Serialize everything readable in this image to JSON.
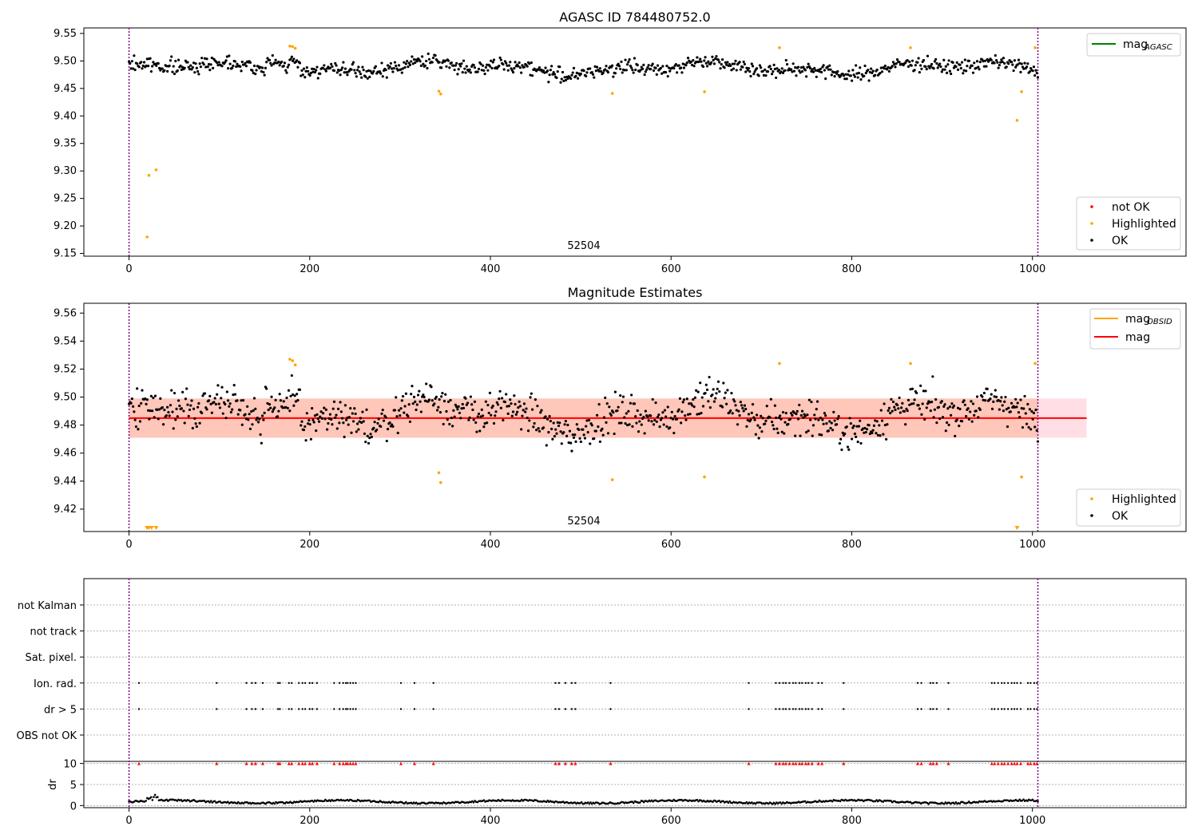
{
  "chart_data": [
    {
      "type": "scatter",
      "title": "AGASC ID 784480752.0",
      "annotation": "52504",
      "xlim": [
        -50,
        1170
      ],
      "ylim": [
        9.145,
        9.56
      ],
      "xticks": [
        0,
        200,
        400,
        600,
        800,
        1000
      ],
      "yticks": [
        9.15,
        9.2,
        9.25,
        9.3,
        9.35,
        9.4,
        9.45,
        9.5,
        9.55
      ],
      "ytick_labels": [
        "9.15",
        "9.20",
        "9.25",
        "9.30",
        "9.35",
        "9.40",
        "9.45",
        "9.50",
        "9.55"
      ],
      "vlines": [
        0,
        1006
      ],
      "lines": [
        {
          "name": "mag_AGASC",
          "label_main": "mag",
          "label_sub": "AGASC",
          "color": "#008000",
          "y": null
        }
      ],
      "legend_points": [
        {
          "name": "not OK",
          "color": "#ff0000"
        },
        {
          "name": "Highlighted",
          "color": "#ffa500"
        },
        {
          "name": "OK",
          "color": "#000000"
        }
      ],
      "ok_points": {
        "x_start": 0,
        "x_end": 1006,
        "count": 900,
        "base": 9.487,
        "spread": 0.014,
        "color": "#000000"
      },
      "highlighted_points": {
        "x": [
          20,
          22,
          30,
          178,
          181,
          184,
          343,
          345,
          535,
          637,
          720,
          865,
          983,
          988,
          1003
        ],
        "y": [
          9.18,
          9.292,
          9.302,
          9.527,
          9.526,
          9.523,
          9.445,
          9.44,
          9.441,
          9.444,
          9.524,
          9.524,
          9.392,
          9.444,
          9.524
        ],
        "color": "#ffa500"
      }
    },
    {
      "type": "scatter",
      "title": "Magnitude Estimates",
      "annotation": "52504",
      "xlim": [
        -50,
        1170
      ],
      "ylim": [
        9.404,
        9.567
      ],
      "xticks": [
        0,
        200,
        400,
        600,
        800,
        1000
      ],
      "yticks": [
        9.42,
        9.44,
        9.46,
        9.48,
        9.5,
        9.52,
        9.54,
        9.56
      ],
      "ytick_labels": [
        "9.42",
        "9.44",
        "9.46",
        "9.48",
        "9.50",
        "9.52",
        "9.54",
        "9.56"
      ],
      "vlines": [
        0,
        1006
      ],
      "mag": {
        "value": 9.485,
        "x_end": 1060,
        "color": "#ff0000"
      },
      "bands": [
        {
          "y0": 9.471,
          "y1": 9.499,
          "x_end": 1060,
          "color": "#ffc0cb",
          "opacity": 0.5
        },
        {
          "y0": 9.471,
          "y1": 9.499,
          "x_end": 1006,
          "color": "#ffa07a",
          "opacity": 0.4
        }
      ],
      "lines": [
        {
          "name": "mag_OBSID",
          "label_main": "mag",
          "label_sub": "OBSID",
          "color": "#ffa500"
        },
        {
          "name": "mag",
          "label_main": "mag",
          "label_sub": "",
          "color": "#ff0000"
        }
      ],
      "legend_points": [
        {
          "name": "Highlighted",
          "color": "#ffa500"
        },
        {
          "name": "OK",
          "color": "#000000"
        }
      ],
      "ok_points": {
        "x_start": 0,
        "x_end": 1006,
        "count": 900,
        "base": 9.487,
        "spread": 0.014,
        "color": "#000000"
      },
      "highlighted_points": {
        "x": [
          178,
          181,
          184,
          343,
          345,
          535,
          637,
          720,
          865,
          988,
          1003
        ],
        "y": [
          9.527,
          9.526,
          9.523,
          9.446,
          9.439,
          9.441,
          9.443,
          9.524,
          9.524,
          9.443,
          9.524
        ],
        "color": "#ffa500"
      },
      "offscale_markers": {
        "x": [
          20,
          22,
          25,
          30,
          983
        ],
        "color": "#ffa500"
      }
    },
    {
      "type": "scatter",
      "title": "",
      "xlim": [
        -50,
        1170
      ],
      "xticks": [
        0,
        200,
        400,
        600,
        800,
        1000
      ],
      "vlines": [
        0,
        1006
      ],
      "flag_rows": [
        "not Kalman",
        "not track",
        "Sat. pixel.",
        "Ion. rad.",
        "dr > 5",
        "OBS not OK"
      ],
      "flag_events": {
        "Ion. rad.": [
          11,
          97,
          130,
          136,
          140,
          148,
          165,
          167,
          177,
          180,
          188,
          192,
          195,
          200,
          203,
          208,
          227,
          233,
          237,
          240,
          242,
          245,
          248,
          251,
          301,
          316,
          337,
          472,
          476,
          483,
          490,
          494,
          533,
          686,
          716,
          720,
          724,
          727,
          731,
          735,
          738,
          742,
          745,
          749,
          752,
          756,
          763,
          767,
          791,
          873,
          877,
          887,
          890,
          894,
          907,
          955,
          958,
          962,
          966,
          969,
          973,
          977,
          980,
          983,
          987,
          995,
          998,
          1002,
          1005
        ],
        "dr > 5": [
          11,
          97,
          130,
          136,
          140,
          148,
          165,
          167,
          177,
          180,
          188,
          192,
          195,
          200,
          203,
          208,
          227,
          233,
          237,
          240,
          242,
          245,
          248,
          251,
          301,
          316,
          337,
          472,
          476,
          483,
          490,
          494,
          533,
          686,
          716,
          720,
          724,
          727,
          731,
          735,
          738,
          742,
          745,
          749,
          752,
          756,
          763,
          767,
          791,
          873,
          877,
          887,
          890,
          894,
          907,
          955,
          958,
          962,
          966,
          969,
          973,
          977,
          980,
          983,
          987,
          995,
          998,
          1002,
          1005
        ]
      },
      "dr_panel": {
        "ylabel": "dr",
        "yticks": [
          0,
          5,
          10
        ],
        "ylim": [
          -0.5,
          10.5
        ],
        "spikes_x": [
          11,
          97,
          130,
          136,
          140,
          148,
          165,
          167,
          177,
          180,
          188,
          192,
          195,
          200,
          203,
          208,
          227,
          233,
          237,
          240,
          242,
          245,
          248,
          251,
          301,
          316,
          337,
          472,
          476,
          483,
          490,
          494,
          533,
          686,
          716,
          720,
          724,
          727,
          731,
          735,
          738,
          742,
          745,
          749,
          752,
          756,
          763,
          767,
          791,
          873,
          877,
          887,
          890,
          894,
          907,
          955,
          958,
          962,
          966,
          969,
          973,
          977,
          980,
          983,
          987,
          995,
          998,
          1002,
          1005
        ],
        "spike_value": 10,
        "spike_color": "#ff0000",
        "baseline_count": 700,
        "baseline_color": "#000000"
      }
    }
  ]
}
